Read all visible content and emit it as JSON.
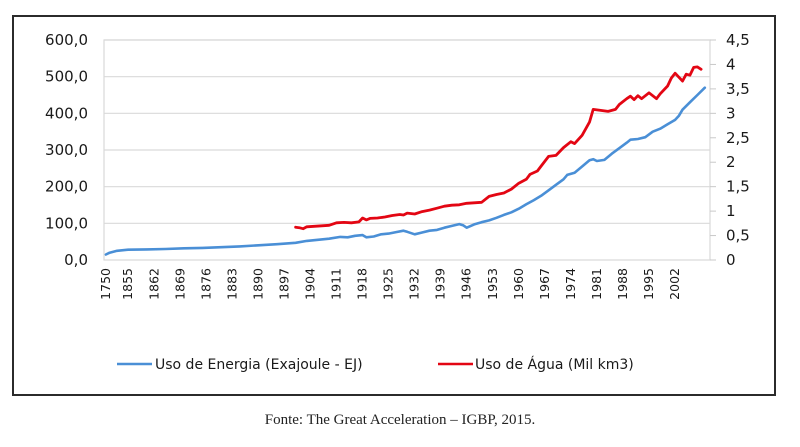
{
  "chart_data": {
    "type": "line",
    "title": "",
    "xlabel": "",
    "ylabel_left": "",
    "ylabel_right": "",
    "caption": "Fonte: The Great Acceleration – IGBP, 2015.",
    "left_axis": {
      "range": [
        0,
        600
      ],
      "ticks": [
        0,
        100,
        200,
        300,
        400,
        500,
        600
      ],
      "tick_labels": [
        "0,0",
        "100,0",
        "200,0",
        "300,0",
        "400,0",
        "500,0",
        "600,0"
      ]
    },
    "right_axis": {
      "range": [
        0,
        4.5
      ],
      "ticks": [
        0,
        0.5,
        1,
        1.5,
        2,
        2.5,
        3,
        3.5,
        4,
        4.5
      ],
      "tick_labels": [
        "0",
        "0,5",
        "1",
        "1,5",
        "2",
        "2,5",
        "3",
        "3,5",
        "4",
        "4,5"
      ]
    },
    "x_categories_note": "1750 followed by annual 1850–2010",
    "x_tick_labels": [
      "1750",
      "1855",
      "1862",
      "1869",
      "1876",
      "1883",
      "1890",
      "1897",
      "1904",
      "1911",
      "1918",
      "1925",
      "1932",
      "1939",
      "1946",
      "1953",
      "1960",
      "1967",
      "1974",
      "1981",
      "1988",
      "1995",
      "2002"
    ],
    "grid": true,
    "legend_position": "bottom",
    "series": [
      {
        "name": "Uso de Energia (Exajoule - EJ)",
        "axis": "left",
        "color": "#4a8fd6",
        "points": [
          [
            1750,
            15
          ],
          [
            1850,
            20
          ],
          [
            1852,
            25
          ],
          [
            1855,
            28
          ],
          [
            1860,
            29
          ],
          [
            1865,
            30
          ],
          [
            1870,
            32
          ],
          [
            1875,
            33
          ],
          [
            1880,
            35
          ],
          [
            1885,
            37
          ],
          [
            1890,
            40
          ],
          [
            1895,
            43
          ],
          [
            1900,
            47
          ],
          [
            1903,
            52
          ],
          [
            1906,
            55
          ],
          [
            1909,
            58
          ],
          [
            1912,
            63
          ],
          [
            1914,
            62
          ],
          [
            1916,
            66
          ],
          [
            1918,
            68
          ],
          [
            1919,
            62
          ],
          [
            1921,
            64
          ],
          [
            1923,
            70
          ],
          [
            1925,
            72
          ],
          [
            1927,
            76
          ],
          [
            1929,
            80
          ],
          [
            1930,
            77
          ],
          [
            1932,
            70
          ],
          [
            1934,
            75
          ],
          [
            1936,
            80
          ],
          [
            1938,
            82
          ],
          [
            1940,
            88
          ],
          [
            1942,
            93
          ],
          [
            1944,
            98
          ],
          [
            1945,
            95
          ],
          [
            1946,
            88
          ],
          [
            1948,
            97
          ],
          [
            1950,
            103
          ],
          [
            1952,
            108
          ],
          [
            1954,
            115
          ],
          [
            1956,
            123
          ],
          [
            1958,
            130
          ],
          [
            1960,
            140
          ],
          [
            1962,
            152
          ],
          [
            1964,
            163
          ],
          [
            1966,
            175
          ],
          [
            1968,
            190
          ],
          [
            1970,
            205
          ],
          [
            1972,
            220
          ],
          [
            1973,
            232
          ],
          [
            1975,
            238
          ],
          [
            1977,
            255
          ],
          [
            1979,
            272
          ],
          [
            1980,
            275
          ],
          [
            1981,
            270
          ],
          [
            1983,
            273
          ],
          [
            1985,
            290
          ],
          [
            1987,
            305
          ],
          [
            1989,
            320
          ],
          [
            1990,
            328
          ],
          [
            1992,
            330
          ],
          [
            1994,
            335
          ],
          [
            1996,
            350
          ],
          [
            1998,
            358
          ],
          [
            2000,
            370
          ],
          [
            2002,
            382
          ],
          [
            2003,
            393
          ],
          [
            2004,
            410
          ],
          [
            2006,
            430
          ],
          [
            2008,
            450
          ],
          [
            2010,
            470
          ]
        ]
      },
      {
        "name": "Uso de Água (Mil km3)",
        "axis": "right",
        "color": "#e30613",
        "points": [
          [
            1900,
            0.67
          ],
          [
            1901,
            0.66
          ],
          [
            1902,
            0.64
          ],
          [
            1903,
            0.68
          ],
          [
            1905,
            0.69
          ],
          [
            1907,
            0.7
          ],
          [
            1909,
            0.71
          ],
          [
            1911,
            0.76
          ],
          [
            1913,
            0.77
          ],
          [
            1915,
            0.76
          ],
          [
            1917,
            0.78
          ],
          [
            1918,
            0.86
          ],
          [
            1919,
            0.82
          ],
          [
            1920,
            0.85
          ],
          [
            1922,
            0.86
          ],
          [
            1924,
            0.88
          ],
          [
            1926,
            0.91
          ],
          [
            1928,
            0.93
          ],
          [
            1929,
            0.92
          ],
          [
            1930,
            0.96
          ],
          [
            1932,
            0.94
          ],
          [
            1934,
            0.99
          ],
          [
            1936,
            1.02
          ],
          [
            1938,
            1.06
          ],
          [
            1940,
            1.1
          ],
          [
            1942,
            1.12
          ],
          [
            1944,
            1.13
          ],
          [
            1946,
            1.16
          ],
          [
            1948,
            1.17
          ],
          [
            1950,
            1.18
          ],
          [
            1952,
            1.3
          ],
          [
            1954,
            1.34
          ],
          [
            1956,
            1.37
          ],
          [
            1958,
            1.45
          ],
          [
            1960,
            1.57
          ],
          [
            1962,
            1.65
          ],
          [
            1963,
            1.75
          ],
          [
            1965,
            1.82
          ],
          [
            1966,
            1.92
          ],
          [
            1968,
            2.12
          ],
          [
            1970,
            2.14
          ],
          [
            1972,
            2.3
          ],
          [
            1974,
            2.42
          ],
          [
            1975,
            2.38
          ],
          [
            1977,
            2.55
          ],
          [
            1979,
            2.82
          ],
          [
            1980,
            3.08
          ],
          [
            1982,
            3.06
          ],
          [
            1984,
            3.04
          ],
          [
            1986,
            3.08
          ],
          [
            1987,
            3.18
          ],
          [
            1989,
            3.3
          ],
          [
            1990,
            3.35
          ],
          [
            1991,
            3.28
          ],
          [
            1992,
            3.36
          ],
          [
            1993,
            3.3
          ],
          [
            1995,
            3.42
          ],
          [
            1996,
            3.36
          ],
          [
            1997,
            3.3
          ],
          [
            1998,
            3.4
          ],
          [
            2000,
            3.56
          ],
          [
            2001,
            3.72
          ],
          [
            2002,
            3.82
          ],
          [
            2004,
            3.66
          ],
          [
            2005,
            3.8
          ],
          [
            2006,
            3.78
          ],
          [
            2007,
            3.94
          ],
          [
            2008,
            3.95
          ],
          [
            2009,
            3.9
          ]
        ]
      }
    ]
  }
}
